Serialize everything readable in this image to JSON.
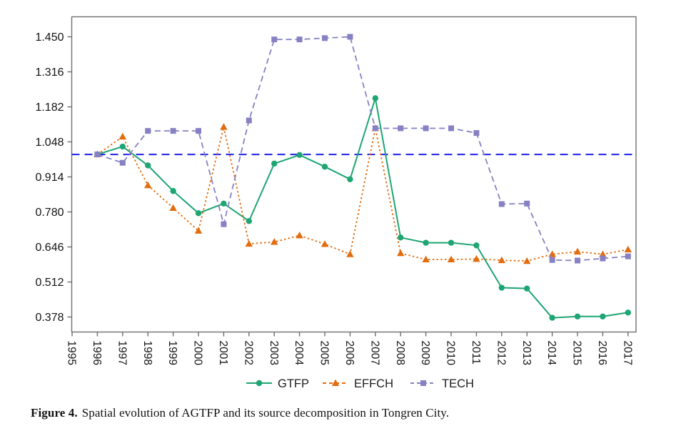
{
  "figure": {
    "caption_label": "Figure 4.",
    "caption_text": "Spatial evolution of AGTFP and its source decomposition in Tongren City."
  },
  "chart_data": {
    "type": "line",
    "title": "",
    "xlabel": "",
    "ylabel": "",
    "grid": false,
    "legend_position": "bottom-center",
    "x_axis_ticks": [
      1995,
      1996,
      1997,
      1998,
      1999,
      2000,
      2001,
      2002,
      2003,
      2004,
      2005,
      2006,
      2007,
      2008,
      2009,
      2010,
      2011,
      2012,
      2013,
      2014,
      2015,
      2016,
      2017
    ],
    "x_axis_tick_labels": [
      "1995",
      "1996",
      "1997",
      "1998",
      "1999",
      "2000",
      "2001",
      "2002",
      "2003",
      "2004",
      "2005",
      "2006",
      "2007",
      "2008",
      "2009",
      "2010",
      "2011",
      "2012",
      "2013",
      "2014",
      "2015",
      "2016",
      "2017"
    ],
    "y_ticks": [
      1.45,
      1.316,
      1.182,
      1.048,
      0.914,
      0.78,
      0.646,
      0.512,
      0.378
    ],
    "y_tick_labels": [
      "1.450",
      "1.316",
      "1.182",
      "1.048",
      "0.914",
      "0.780",
      "0.646",
      "0.512",
      "0.378"
    ],
    "ylim": [
      0.32,
      1.52
    ],
    "x": [
      1996,
      1997,
      1998,
      1999,
      2000,
      2001,
      2002,
      2003,
      2004,
      2005,
      2006,
      2007,
      2008,
      2009,
      2010,
      2011,
      2012,
      2013,
      2014,
      2015,
      2016,
      2017
    ],
    "reference_line": {
      "value": 1.0,
      "color": "#2b2beb",
      "style": "dashed"
    },
    "series": [
      {
        "name": "GTFP",
        "color": "#1ea573",
        "marker": "circle",
        "line_style": "solid",
        "values": [
          1.0,
          1.03,
          0.958,
          0.86,
          0.775,
          0.812,
          0.745,
          0.965,
          0.998,
          0.953,
          0.905,
          1.215,
          0.682,
          0.662,
          0.662,
          0.652,
          0.49,
          0.487,
          0.375,
          0.38,
          0.38,
          0.395
        ]
      },
      {
        "name": "EFFCH",
        "color": "#e26c0e",
        "marker": "triangle",
        "line_style": "dotted",
        "values": [
          1.0,
          1.068,
          0.882,
          0.795,
          0.708,
          1.105,
          0.658,
          0.665,
          0.69,
          0.657,
          0.618,
          1.1,
          0.622,
          0.598,
          0.598,
          0.6,
          0.595,
          0.592,
          0.618,
          0.628,
          0.618,
          0.636
        ]
      },
      {
        "name": "TECH",
        "color": "#8781c4",
        "marker": "square",
        "line_style": "dashed",
        "values": [
          1.0,
          0.968,
          1.09,
          1.09,
          1.09,
          0.733,
          1.13,
          1.44,
          1.44,
          1.445,
          1.45,
          1.1,
          1.1,
          1.1,
          1.1,
          1.082,
          0.81,
          0.812,
          0.596,
          0.594,
          0.602,
          0.61
        ]
      }
    ],
    "axis_color": "#6e6e6e",
    "tick_label_color": "#141414"
  }
}
